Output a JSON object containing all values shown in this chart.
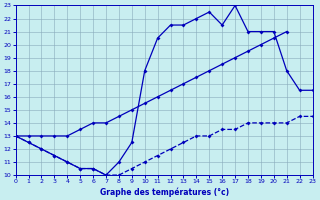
{
  "title": "Graphe des températures (°c)",
  "bg_color": "#c8eef0",
  "line_color": "#0000bb",
  "grid_color": "#88aabb",
  "xlim": [
    0,
    23
  ],
  "ylim": [
    10,
    23
  ],
  "xticks": [
    0,
    1,
    2,
    3,
    4,
    5,
    6,
    7,
    8,
    9,
    10,
    11,
    12,
    13,
    14,
    15,
    16,
    17,
    18,
    19,
    20,
    21,
    22,
    23
  ],
  "yticks": [
    10,
    11,
    12,
    13,
    14,
    15,
    16,
    17,
    18,
    19,
    20,
    21,
    22,
    23
  ],
  "line_diag_x": [
    0,
    1,
    2,
    3,
    4,
    5,
    6,
    7,
    8,
    9,
    10,
    11,
    12,
    13,
    14,
    15,
    16,
    17,
    18,
    19,
    20,
    21
  ],
  "line_diag_y": [
    13,
    13,
    13,
    13,
    13,
    13.5,
    14,
    14,
    14.5,
    15,
    15.5,
    16,
    16.5,
    17,
    17.5,
    18,
    18.5,
    19,
    19.5,
    20,
    20.5,
    21
  ],
  "line_temp_x": [
    0,
    1,
    2,
    3,
    4,
    5,
    6,
    7,
    8,
    9,
    10,
    11,
    12,
    13,
    14,
    15,
    16,
    17,
    18,
    19,
    20,
    21,
    22,
    23
  ],
  "line_temp_y": [
    13,
    12.5,
    12,
    11.5,
    11,
    10.5,
    10.5,
    10,
    11,
    12.5,
    18,
    20.5,
    21.5,
    21.5,
    22,
    22.5,
    21.5,
    23,
    21,
    21,
    21,
    18,
    16.5,
    16.5
  ],
  "line_flat_x": [
    0,
    1,
    2,
    3,
    4,
    5,
    6,
    7,
    8,
    9,
    10,
    11,
    12,
    13,
    14,
    15,
    16,
    17,
    18,
    19,
    20,
    21,
    22,
    23
  ],
  "line_flat_y": [
    13,
    12.5,
    12,
    11.5,
    11,
    10.5,
    10.5,
    10,
    10,
    10.5,
    11,
    11.5,
    12,
    12.5,
    13,
    13,
    13.5,
    13.5,
    14,
    14,
    14,
    14,
    14.5,
    14.5
  ],
  "marker_style": "D",
  "marker_size": 2.0,
  "line_width": 0.9
}
